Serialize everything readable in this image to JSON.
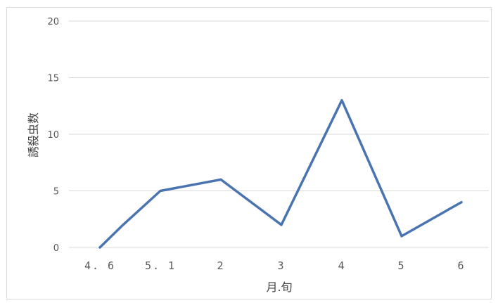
{
  "chart_data": {
    "type": "line",
    "xlabel": "月.旬",
    "ylabel": "誘殺虫数",
    "categories": [
      "4. 6",
      "5. 1",
      "2",
      "3",
      "4",
      "5",
      "6"
    ],
    "x": [
      "4. 6",
      "4.5",
      "5. 1",
      "2",
      "3",
      "4",
      "5",
      "6"
    ],
    "values": [
      0,
      2,
      5,
      6,
      2,
      13,
      1,
      4
    ],
    "ylim": [
      0,
      20
    ],
    "yticks": [
      0,
      5,
      10,
      15,
      20
    ],
    "grid": true,
    "legend": "none",
    "colors": {
      "line": "#4a74b0",
      "grid": "#d9d9d9",
      "text": "#595959"
    }
  }
}
